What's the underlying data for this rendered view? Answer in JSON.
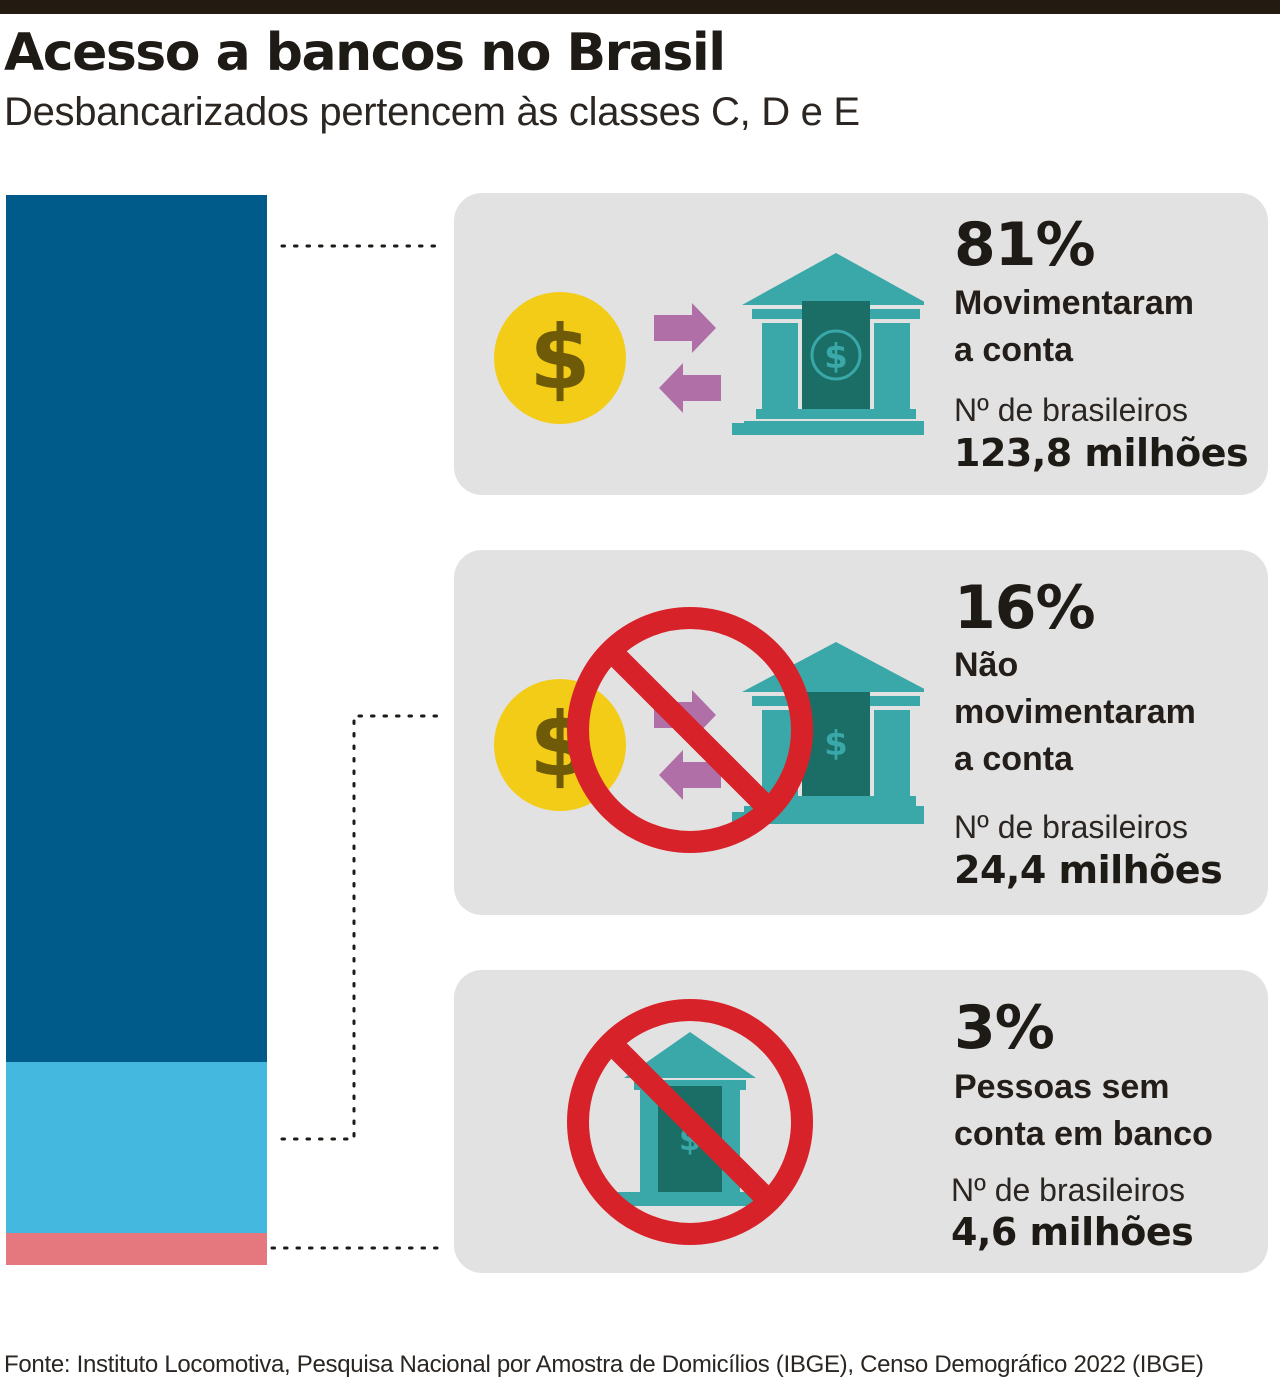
{
  "title": "Acesso a bancos no Brasil",
  "subtitle": "Desbancarizados pertencem às classes C, D e E",
  "source": "Fonte: Instituto Locomotiva, Pesquisa Nacional por Amostra de Domicílios (IBGE), Censo Demográfico 2022 (IBGE)",
  "colors": {
    "moved_account": "#005b8a",
    "did_not_move": "#45b8e0",
    "no_account": "#e5787f",
    "bank_icon": "#3aa7a8",
    "coin": "#f2cc17",
    "arrows": "#b06fa7",
    "prohibited": "#d8222a",
    "card_bg": "#e3e2e2"
  },
  "chart_data": {
    "type": "bar",
    "stacked": true,
    "categories": [
      "Movimentaram a conta",
      "Não movimentaram a conta",
      "Pessoas sem conta em banco"
    ],
    "values": [
      81,
      16,
      3
    ],
    "unit": "%",
    "people_millions": [
      123.8,
      24.4,
      4.6
    ]
  },
  "cards": [
    {
      "pct": "81%",
      "label_lines": [
        "Movimentaram",
        "a conta"
      ],
      "count_label": "Nº de brasileiros",
      "count": "123,8 milhões",
      "icon": "coin-arrows-bank-icon"
    },
    {
      "pct": "16%",
      "label_lines": [
        "Não",
        "movimentaram",
        "a conta"
      ],
      "count_label": "Nº de brasileiros",
      "count": "24,4 milhões",
      "icon": "prohibited-transfer-icon"
    },
    {
      "pct": "3%",
      "label_lines": [
        "Pessoas sem",
        "conta em banco"
      ],
      "count_label": "Nº de brasileiros",
      "count": "4,6 milhões",
      "icon": "prohibited-bank-icon"
    }
  ]
}
